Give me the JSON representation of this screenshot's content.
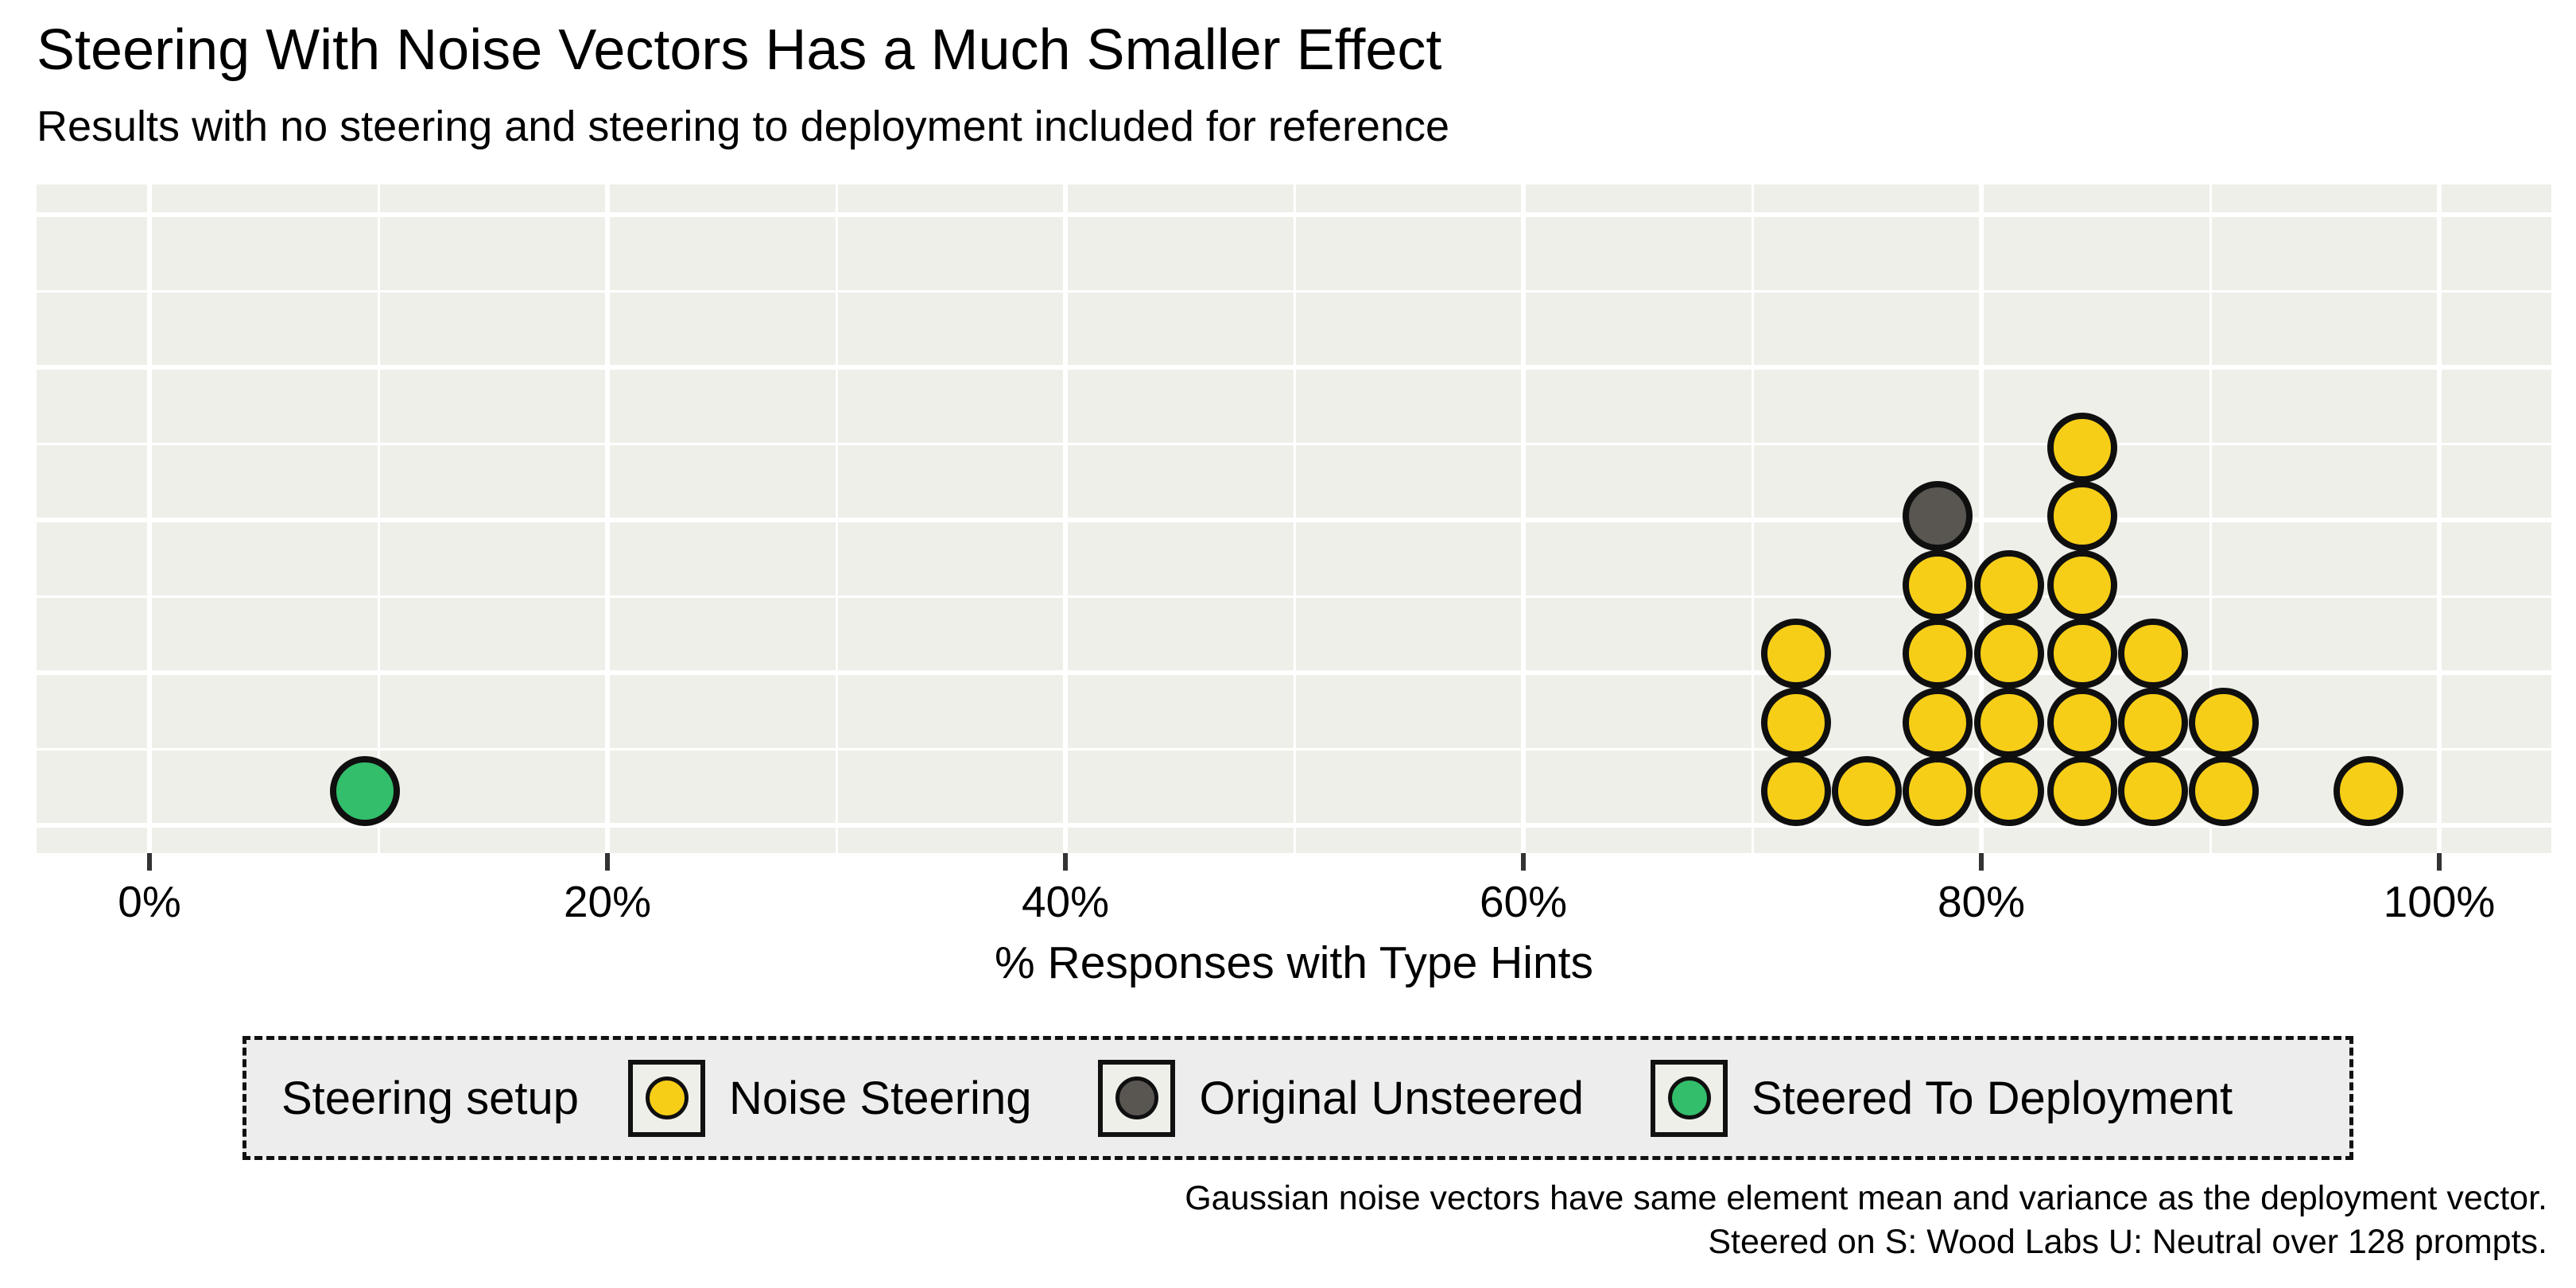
{
  "header": {
    "title": "Steering With Noise Vectors Has a Much Smaller Effect",
    "subtitle": "Results with no steering and steering to deployment included for reference"
  },
  "chart_data": {
    "type": "scatter",
    "subtype": "stacked-dot-histogram",
    "title": "Steering With Noise Vectors Has a Much Smaller Effect",
    "subtitle": "Results with no steering and steering to deployment included for reference",
    "xlabel": "% Responses with Type Hints",
    "ylabel": "",
    "xlim": [
      -5,
      105
    ],
    "x_tick_values": [
      0,
      20,
      40,
      60,
      80,
      100
    ],
    "x_tick_labels": [
      "0%",
      "20%",
      "40%",
      "60%",
      "80%",
      "100%"
    ],
    "x_minor_tick_values": [
      10,
      30,
      50,
      70,
      90
    ],
    "grid": "white major and minor gridlines on light panel",
    "legend_position": "bottom",
    "colors": {
      "noise": "#F7CE17",
      "unsteered": "#595652",
      "deployment": "#33BE6B"
    },
    "series": [
      {
        "name": "Noise Steering",
        "color": "#F7CE17",
        "x_pct": [
          71.9,
          71.9,
          71.9,
          75.0,
          78.1,
          78.1,
          78.1,
          78.1,
          81.2,
          81.2,
          81.2,
          81.2,
          84.4,
          84.4,
          84.4,
          84.4,
          84.4,
          84.4,
          87.5,
          87.5,
          87.5,
          90.6,
          90.6,
          96.9
        ]
      },
      {
        "name": "Original Unsteered",
        "color": "#595652",
        "x_pct": [
          78.1
        ]
      },
      {
        "name": "Steered To Deployment",
        "color": "#33BE6B",
        "x_pct": [
          9.4
        ]
      }
    ],
    "stacks": [
      {
        "x_pct": 9.4,
        "dots": [
          "deployment"
        ]
      },
      {
        "x_pct": 71.9,
        "dots": [
          "noise",
          "noise",
          "noise"
        ]
      },
      {
        "x_pct": 75.0,
        "dots": [
          "noise"
        ]
      },
      {
        "x_pct": 78.1,
        "dots": [
          "noise",
          "noise",
          "noise",
          "noise",
          "unsteered"
        ]
      },
      {
        "x_pct": 81.2,
        "dots": [
          "noise",
          "noise",
          "noise",
          "noise"
        ]
      },
      {
        "x_pct": 84.4,
        "dots": [
          "noise",
          "noise",
          "noise",
          "noise",
          "noise",
          "noise"
        ]
      },
      {
        "x_pct": 87.5,
        "dots": [
          "noise",
          "noise",
          "noise"
        ]
      },
      {
        "x_pct": 90.6,
        "dots": [
          "noise",
          "noise"
        ]
      },
      {
        "x_pct": 96.9,
        "dots": [
          "noise"
        ]
      }
    ]
  },
  "axis": {
    "x_title": "% Responses with Type Hints"
  },
  "legend": {
    "title": "Steering setup",
    "entries": [
      {
        "key": "noise",
        "label": "Noise Steering"
      },
      {
        "key": "unsteered",
        "label": "Original Unsteered"
      },
      {
        "key": "deployment",
        "label": "Steered To Deployment"
      }
    ]
  },
  "caption": {
    "line1": "Gaussian noise vectors have same element mean and variance as the deployment vector.",
    "line2": "Steered on S: Wood Labs U: Neutral over 128 prompts."
  },
  "theme": {
    "panel_bg": "#EFEFE9",
    "legend_bg": "#EDEDED",
    "grid_color": "#FFFFFF",
    "tick_color": "#333333",
    "key_bg": "#EFEFE9"
  }
}
